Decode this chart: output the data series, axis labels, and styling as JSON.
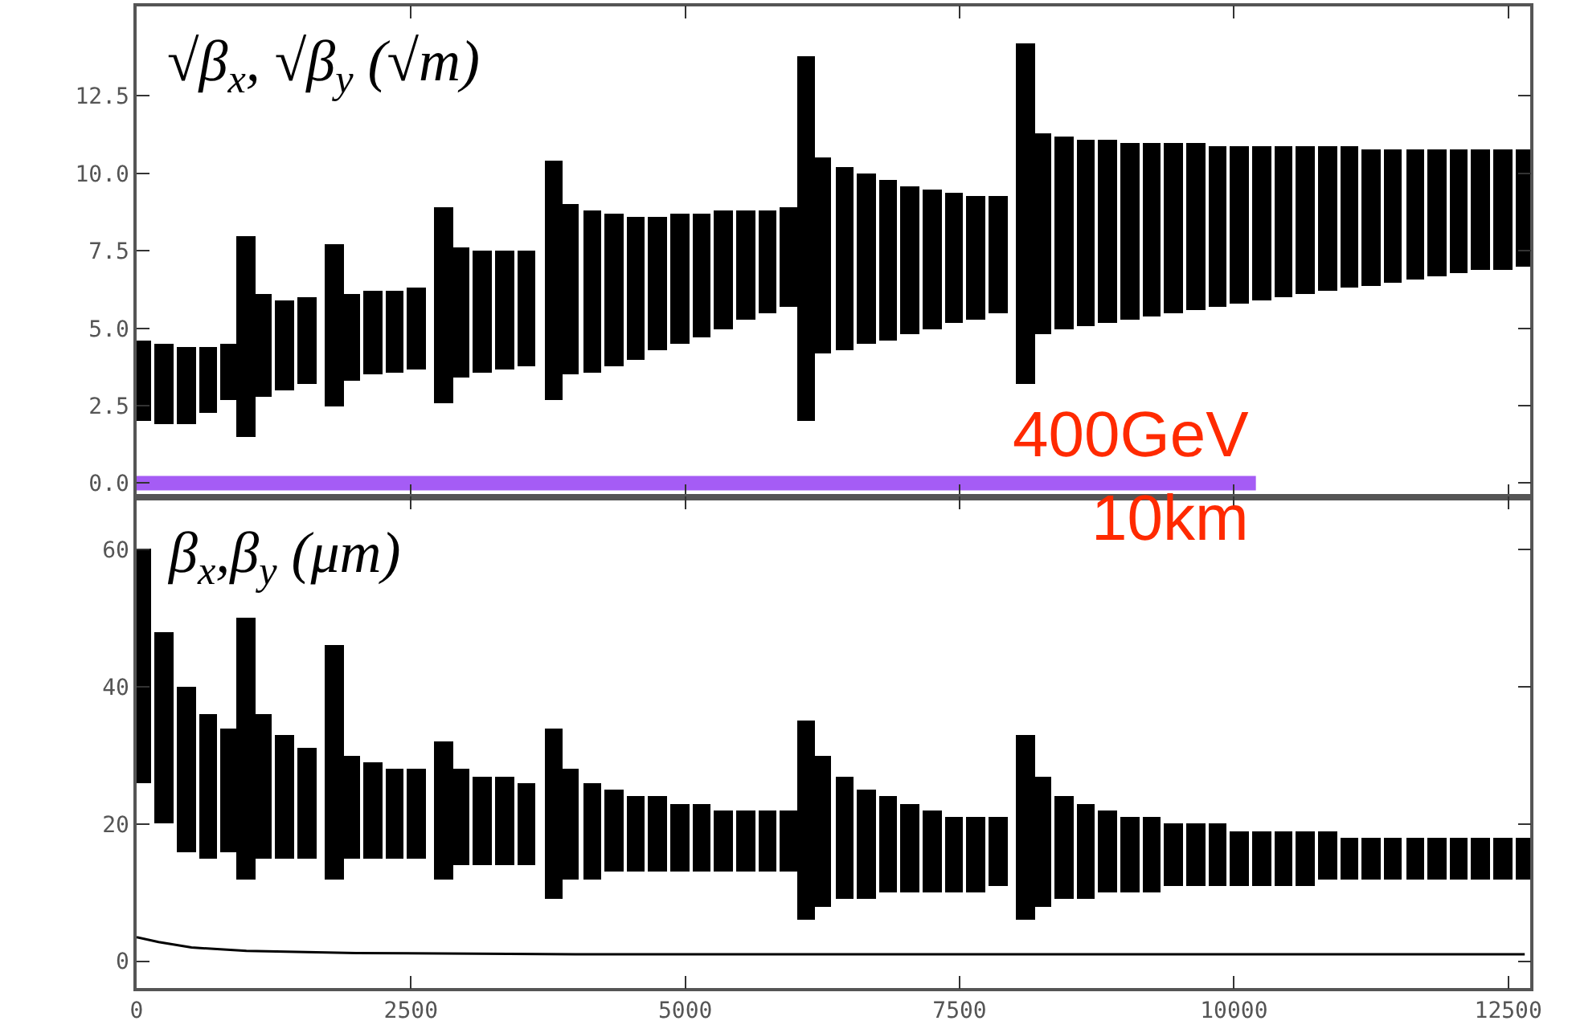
{
  "chart_data": [
    {
      "type": "bar",
      "tick_labels": "y",
      "xlim": [
        0,
        12700
      ],
      "ylim": [
        -0.45,
        15.4
      ],
      "xticks": [
        0,
        2500,
        5000,
        7500,
        10000,
        12500
      ],
      "yticks": [
        {
          "value": 0,
          "label": "0.0"
        },
        2.5,
        {
          "value": 5,
          "label": "5.0"
        },
        7.5,
        {
          "value": 10,
          "label": "10.0"
        },
        12.5
      ],
      "annotations": [
        "√β$_{x}$, √β$_{y}$ (√m)",
        "400GeV\n10km"
      ],
      "series": [
        {
          "color": "#000000",
          "x": [
            50,
            250,
            450,
            650,
            850,
            1000,
            1150,
            1350,
            1550,
            1800,
            1950,
            2150,
            2350,
            2550,
            2800,
            2950,
            3150,
            3350,
            3550,
            3800,
            3950,
            4150,
            4350,
            4550,
            4750,
            4950,
            5150,
            5350,
            5550,
            5750,
            5950,
            6100,
            6250,
            6450,
            6650,
            6850,
            7050,
            7250,
            7450,
            7650,
            7850,
            8100,
            8250,
            8450,
            8650,
            8850,
            9050,
            9250,
            9450,
            9650,
            9850,
            10050,
            10250,
            10450,
            10650,
            10850,
            11050,
            11250,
            11450,
            11650,
            11850,
            12050,
            12250,
            12450,
            12650
          ],
          "base": [
            2.0,
            1.9,
            1.9,
            2.3,
            2.7,
            1.5,
            2.8,
            3.0,
            3.2,
            2.5,
            3.3,
            3.5,
            3.6,
            3.7,
            2.6,
            3.4,
            3.6,
            3.7,
            3.8,
            2.7,
            3.5,
            3.6,
            3.8,
            4.0,
            4.3,
            4.5,
            4.7,
            5.0,
            5.3,
            5.5,
            5.7,
            2.0,
            4.2,
            4.3,
            4.5,
            4.6,
            4.8,
            5.0,
            5.2,
            5.3,
            5.5,
            3.2,
            4.8,
            5.0,
            5.1,
            5.2,
            5.3,
            5.4,
            5.5,
            5.6,
            5.7,
            5.8,
            5.9,
            6.0,
            6.1,
            6.2,
            6.3,
            6.4,
            6.5,
            6.6,
            6.7,
            6.8,
            6.9,
            6.9,
            7.0
          ],
          "values": [
            2.6,
            2.6,
            2.5,
            2.1,
            1.8,
            6.5,
            3.3,
            2.9,
            2.8,
            5.2,
            2.8,
            2.7,
            2.6,
            2.6,
            6.3,
            4.2,
            3.9,
            3.8,
            3.7,
            7.7,
            5.5,
            5.2,
            4.9,
            4.6,
            4.3,
            4.2,
            4.0,
            3.8,
            3.5,
            3.3,
            3.2,
            11.8,
            6.3,
            5.9,
            5.5,
            5.2,
            4.8,
            4.5,
            4.2,
            4.0,
            3.8,
            11.0,
            6.5,
            6.2,
            6.0,
            5.9,
            5.7,
            5.6,
            5.5,
            5.4,
            5.2,
            5.1,
            5.0,
            4.9,
            4.8,
            4.7,
            4.6,
            4.4,
            4.3,
            4.2,
            4.1,
            4.0,
            3.9,
            3.9,
            3.8
          ]
        },
        {
          "type": "line",
          "color": "#a55cf5",
          "x": [
            0,
            10200
          ],
          "values": [
            0,
            0
          ]
        }
      ]
    },
    {
      "type": "bar",
      "xlim": [
        0,
        12700
      ],
      "ylim": [
        -3.9,
        67.6
      ],
      "xticks": [
        0,
        2500,
        5000,
        7500,
        10000,
        12500
      ],
      "yticks": [
        0,
        20,
        40,
        60
      ],
      "annotations": [
        "β$_{x}$,β$_{y}$ (μm)"
      ],
      "series": [
        {
          "color": "#000000",
          "x": [
            50,
            250,
            450,
            650,
            850,
            1000,
            1150,
            1350,
            1550,
            1800,
            1950,
            2150,
            2350,
            2550,
            2800,
            2950,
            3150,
            3350,
            3550,
            3800,
            3950,
            4150,
            4350,
            4550,
            4750,
            4950,
            5150,
            5350,
            5550,
            5750,
            5950,
            6100,
            6250,
            6450,
            6650,
            6850,
            7050,
            7250,
            7450,
            7650,
            7850,
            8100,
            8250,
            8450,
            8650,
            8850,
            9050,
            9250,
            9450,
            9650,
            9850,
            10050,
            10250,
            10450,
            10650,
            10850,
            11050,
            11250,
            11450,
            11650,
            11850,
            12050,
            12250,
            12450,
            12650
          ],
          "base": [
            26,
            20,
            16,
            15,
            16,
            12,
            15,
            15,
            15,
            12,
            15,
            15,
            15,
            15,
            12,
            14,
            14,
            14,
            14,
            9,
            12,
            12,
            13,
            13,
            13,
            13,
            13,
            13,
            13,
            13,
            13,
            6,
            8,
            9,
            9,
            10,
            10,
            10,
            10,
            10,
            11,
            6,
            8,
            9,
            9,
            10,
            10,
            10,
            11,
            11,
            11,
            11,
            11,
            11,
            11,
            12,
            12,
            12,
            12,
            12,
            12,
            12,
            12,
            12,
            12
          ],
          "values": [
            34,
            28,
            24,
            21,
            18,
            38,
            21,
            18,
            16,
            34,
            15,
            14,
            13,
            13,
            20,
            14,
            13,
            13,
            12,
            25,
            16,
            14,
            12,
            11,
            11,
            10,
            10,
            9,
            9,
            9,
            9,
            29,
            22,
            18,
            16,
            14,
            13,
            12,
            11,
            11,
            10,
            27,
            19,
            15,
            14,
            12,
            11,
            11,
            9,
            9,
            9,
            8,
            8,
            8,
            8,
            7,
            6,
            6,
            6,
            6,
            6,
            6,
            6,
            6,
            6
          ]
        },
        {
          "type": "line",
          "color": "#000000",
          "x": [
            0,
            200,
            500,
            1000,
            2000,
            4000,
            8000,
            12650
          ],
          "values": [
            3.5,
            2.8,
            2.0,
            1.5,
            1.2,
            1.0,
            1.0,
            1.0
          ]
        }
      ]
    }
  ]
}
